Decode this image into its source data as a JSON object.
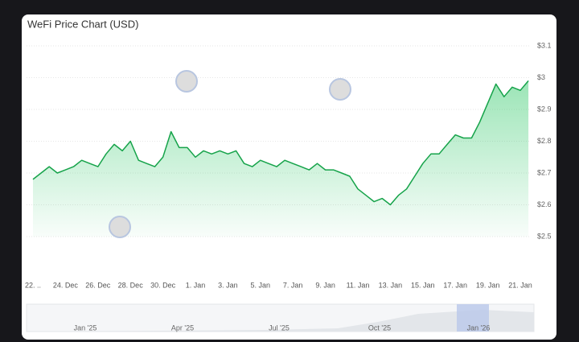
{
  "chart_data": {
    "type": "line",
    "title": "WeFi Price Chart (USD)",
    "categories": [
      "22. ..",
      null,
      null,
      null,
      "24. Dec",
      null,
      null,
      null,
      "26. Dec",
      null,
      null,
      null,
      "28. Dec",
      null,
      null,
      null,
      "30. Dec",
      null,
      null,
      null,
      "1. Jan",
      null,
      null,
      null,
      "3. Jan",
      null,
      null,
      null,
      "5. Jan",
      null,
      null,
      null,
      "7. Jan",
      null,
      null,
      null,
      "9. Jan",
      null,
      null,
      null,
      "11. Jan",
      null,
      null,
      null,
      "13. Jan",
      null,
      null,
      null,
      "15. Jan",
      null,
      null,
      null,
      "17. Jan",
      null,
      null,
      null,
      "19. Jan",
      null,
      null,
      null,
      "21. Jan",
      null
    ],
    "values": [
      2.68,
      2.7,
      2.72,
      2.7,
      2.71,
      2.72,
      2.74,
      2.73,
      2.72,
      2.76,
      2.79,
      2.77,
      2.8,
      2.74,
      2.73,
      2.72,
      2.75,
      2.83,
      2.78,
      2.78,
      2.75,
      2.77,
      2.76,
      2.77,
      2.76,
      2.77,
      2.73,
      2.72,
      2.74,
      2.73,
      2.72,
      2.74,
      2.73,
      2.72,
      2.71,
      2.73,
      2.71,
      2.71,
      2.7,
      2.69,
      2.65,
      2.63,
      2.61,
      2.62,
      2.6,
      2.63,
      2.65,
      2.69,
      2.73,
      2.76,
      2.76,
      2.79,
      2.82,
      2.81,
      2.81,
      2.86,
      2.92,
      2.98,
      2.94,
      2.97,
      2.96,
      2.99
    ],
    "color": "#16a34a",
    "ylim": [
      2.5,
      3.1
    ],
    "yticks": [
      {
        "value": 2.5,
        "label": "$2.5"
      },
      {
        "value": 2.6,
        "label": "$2.6"
      },
      {
        "value": 2.7,
        "label": "$2.7"
      },
      {
        "value": 2.8,
        "label": "$2.8"
      },
      {
        "value": 2.9,
        "label": "$2.9"
      },
      {
        "value": 3,
        "label": "$3"
      },
      {
        "value": 3.1,
        "label": "$3.1"
      }
    ],
    "grid": true,
    "navigator": {
      "labels": [
        "Jan '25",
        "Apr '25",
        "Jul '25",
        "Oct '25",
        "Jan '26"
      ]
    }
  }
}
